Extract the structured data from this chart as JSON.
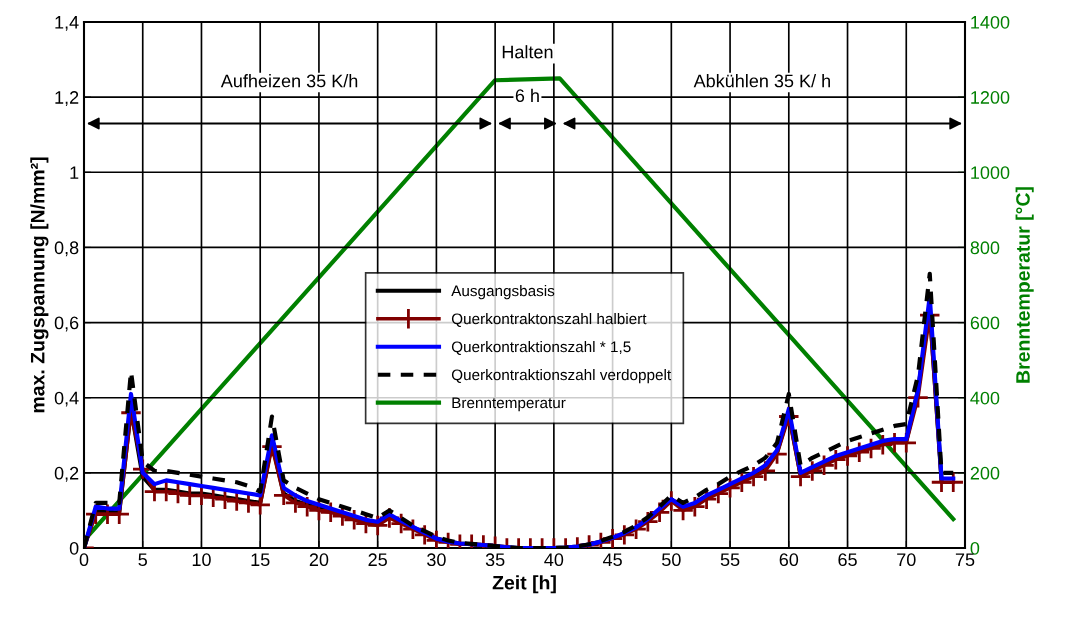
{
  "chart_data": {
    "type": "line",
    "xlabel": "Zeit [h]",
    "ylabel": "max. Zugspannung [N/mm²]",
    "y2label": "Brenntemperatur [°C]",
    "xlim": [
      0,
      75
    ],
    "xticks": [
      0,
      5,
      10,
      15,
      20,
      25,
      30,
      35,
      40,
      45,
      50,
      55,
      60,
      65,
      70,
      75
    ],
    "ylim": [
      0,
      1.4
    ],
    "yticks": [
      0,
      {
        "value": 0.2,
        "label": "0,2"
      },
      {
        "value": 0.4,
        "label": "0,4"
      },
      {
        "value": 0.6,
        "label": "0,6"
      },
      {
        "value": 0.8,
        "label": "0,8"
      },
      1,
      {
        "value": 1.2,
        "label": "1,2"
      },
      {
        "value": 1.4,
        "label": "1,4"
      }
    ],
    "y2lim": [
      0,
      1400
    ],
    "y2ticks": [
      0,
      200,
      400,
      600,
      800,
      1000,
      1200,
      1400
    ],
    "grid": true,
    "legend": "center",
    "x": [
      0,
      1,
      2,
      3,
      4,
      5,
      6,
      7,
      8,
      9,
      10,
      11,
      12,
      13,
      14,
      15,
      16,
      17,
      18,
      19,
      20,
      21,
      22,
      23,
      24,
      25,
      26,
      27,
      28,
      29,
      30,
      31,
      32,
      33,
      34,
      35,
      36,
      37,
      38,
      39,
      40,
      41,
      42,
      43,
      44,
      45,
      46,
      47,
      48,
      49,
      50,
      51,
      52,
      53,
      54,
      55,
      56,
      57,
      58,
      59,
      60,
      61,
      62,
      63,
      64,
      65,
      66,
      67,
      68,
      69,
      70,
      71,
      72,
      73,
      74
    ],
    "series": [
      {
        "name": "Ausgangsbasis",
        "color": "#000000",
        "line_style": "solid",
        "marker": "none",
        "values": [
          0,
          0.1,
          0.095,
          0.095,
          0.37,
          0.19,
          0.155,
          0.155,
          0.15,
          0.145,
          0.145,
          0.14,
          0.135,
          0.13,
          0.125,
          0.12,
          0.28,
          0.145,
          0.125,
          0.115,
          0.105,
          0.1,
          0.09,
          0.08,
          0.07,
          0.065,
          0.085,
          0.07,
          0.055,
          0.04,
          0.025,
          0.017,
          0.012,
          0.01,
          0.008,
          0.005,
          0.002,
          0,
          0,
          0,
          0,
          0.001,
          0.004,
          0.009,
          0.017,
          0.027,
          0.038,
          0.053,
          0.074,
          0.1,
          0.13,
          0.105,
          0.115,
          0.135,
          0.15,
          0.165,
          0.18,
          0.195,
          0.21,
          0.255,
          0.36,
          0.195,
          0.21,
          0.225,
          0.24,
          0.25,
          0.26,
          0.27,
          0.28,
          0.285,
          0.285,
          0.42,
          0.64,
          0.18,
          null
        ]
      },
      {
        "name": "Querkontraktonszahl halbiert",
        "color": "#800000",
        "line_style": "solid",
        "marker": "cross",
        "values": [
          0,
          0.09,
          0.09,
          0.09,
          0.36,
          0.21,
          0.15,
          0.15,
          0.145,
          0.14,
          0.14,
          0.135,
          0.13,
          0.125,
          0.12,
          0.115,
          0.27,
          0.14,
          0.12,
          0.11,
          0.1,
          0.095,
          0.085,
          0.075,
          0.065,
          0.06,
          0.08,
          0.065,
          0.05,
          0.035,
          0.02,
          0.015,
          0.01,
          0.01,
          0.008,
          0.005,
          0,
          0,
          0,
          0,
          0,
          0,
          0.003,
          0.008,
          0.015,
          0.025,
          0.035,
          0.05,
          0.07,
          0.095,
          0.125,
          0.1,
          0.11,
          0.13,
          0.145,
          0.16,
          0.175,
          0.19,
          0.205,
          0.25,
          0.35,
          0.19,
          0.205,
          0.22,
          0.235,
          0.245,
          0.255,
          0.265,
          0.275,
          0.28,
          0.28,
          0.4,
          0.62,
          0.175,
          0.175
        ]
      },
      {
        "name": "Querkontraktionszahl * 1,5",
        "color": "#0000ff",
        "line_style": "solid",
        "marker": "none",
        "values": [
          0,
          0.11,
          0.105,
          0.105,
          0.41,
          0.2,
          0.17,
          0.18,
          0.175,
          0.17,
          0.165,
          0.16,
          0.155,
          0.15,
          0.145,
          0.14,
          0.3,
          0.16,
          0.14,
          0.125,
          0.115,
          0.105,
          0.095,
          0.085,
          0.075,
          0.07,
          0.09,
          0.072,
          0.056,
          0.04,
          0.025,
          0.017,
          0.012,
          0.01,
          0.008,
          0.005,
          0.002,
          0,
          0,
          0,
          0,
          0.001,
          0.004,
          0.009,
          0.017,
          0.027,
          0.04,
          0.055,
          0.077,
          0.105,
          0.13,
          0.11,
          0.12,
          0.14,
          0.155,
          0.17,
          0.185,
          0.2,
          0.22,
          0.26,
          0.37,
          0.2,
          0.215,
          0.23,
          0.245,
          0.255,
          0.265,
          0.275,
          0.285,
          0.29,
          0.29,
          0.42,
          0.67,
          0.185,
          0.185
        ]
      },
      {
        "name": "Querkontraktionszahl verdoppelt",
        "color": "#000000",
        "line_style": "dashed",
        "marker": "none",
        "values": [
          0,
          0.12,
          0.12,
          0.12,
          0.47,
          0.23,
          0.205,
          0.205,
          0.2,
          0.195,
          0.19,
          0.185,
          0.18,
          0.175,
          0.165,
          0.15,
          0.35,
          0.18,
          0.16,
          0.145,
          0.13,
          0.12,
          0.11,
          0.1,
          0.09,
          0.08,
          0.1,
          0.08,
          0.06,
          0.045,
          0.03,
          0.02,
          0.014,
          0.011,
          0.008,
          0.005,
          0.002,
          0,
          0,
          0,
          0,
          0.001,
          0.004,
          0.01,
          0.019,
          0.03,
          0.043,
          0.06,
          0.082,
          0.11,
          0.14,
          0.12,
          0.135,
          0.155,
          0.17,
          0.19,
          0.205,
          0.22,
          0.24,
          0.28,
          0.41,
          0.22,
          0.24,
          0.255,
          0.27,
          0.285,
          0.295,
          0.305,
          0.315,
          0.325,
          0.33,
          0.46,
          0.73,
          0.2,
          0.2
        ]
      },
      {
        "name": "Brenntemperatur",
        "color": "#008000",
        "axis": "y2",
        "line_style": "solid",
        "marker": "none",
        "x": [
          0,
          35,
          40.5,
          74
        ],
        "values": [
          20,
          1245,
          1250,
          77
        ]
      }
    ],
    "annotations": [
      "Aufheizen 35 K/h",
      "Halten",
      "6 h",
      "Abkühlen 35 K/ h"
    ]
  }
}
